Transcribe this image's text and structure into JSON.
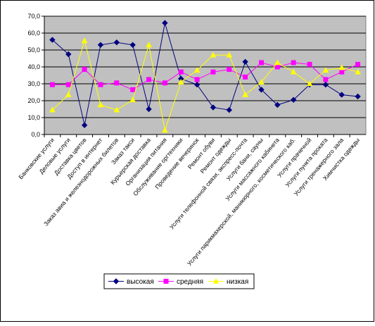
{
  "chart_data": {
    "type": "line",
    "categories": [
      "Банковские услуги",
      "Деловые услуги",
      "Доставка цветов",
      "Доступ в интернет",
      "Заказ авиа и железнодорожных билетов",
      "Заказ такси",
      "Курьерская доставка",
      "Организация питания",
      "Обслуживание оргтехники",
      "Проведение вечеринок",
      "Ремонт обуви",
      "Ремонт одежды",
      "Услуги телефонной связи, экспресс-почта",
      "Услуги бани, сауны",
      "Услуги массажного кабинета",
      "Услуги парикмахерской, маникюрного, косметического каб.",
      "Услуги прачечной",
      "Услуги пункта проката",
      "Услуги тренажерного зала",
      "Химчистка одежды"
    ],
    "series": [
      {
        "name": "высокая",
        "color": "#000080",
        "marker": "diamond",
        "values": [
          56,
          47.5,
          5.5,
          53,
          54.5,
          53,
          15,
          66,
          33,
          29.5,
          16,
          14.5,
          43,
          26.5,
          17.5,
          20.5,
          29.5,
          29.5,
          23.5,
          22.5
        ]
      },
      {
        "name": "средняя",
        "color": "#ff00ff",
        "marker": "square",
        "values": [
          29.5,
          29.5,
          38.5,
          29.5,
          30.5,
          26.5,
          32.5,
          30.5,
          37,
          32.5,
          37,
          38.5,
          34,
          42.5,
          40,
          42.5,
          41.5,
          32.5,
          37,
          41.5
        ]
      },
      {
        "name": "низкая",
        "color": "#ffff00",
        "marker": "triangle",
        "values": [
          14.5,
          23.5,
          55.5,
          17.5,
          14.5,
          20.5,
          53,
          2.5,
          31,
          38,
          47,
          47,
          23.5,
          31,
          42.5,
          37,
          30,
          38,
          39.5,
          37
        ]
      }
    ],
    "ylim": [
      0,
      70
    ],
    "yticks": [
      {
        "value": 0,
        "label": "0,0"
      },
      {
        "value": 10,
        "label": "10,0"
      },
      {
        "value": 20,
        "label": "20,0"
      },
      {
        "value": 30,
        "label": "30,0"
      },
      {
        "value": 40,
        "label": "40,0"
      },
      {
        "value": 50,
        "label": "50,0"
      },
      {
        "value": 60,
        "label": "60,0"
      },
      {
        "value": 70,
        "label": "70,0"
      }
    ],
    "grid": true,
    "plot_background": "#c0c0c0",
    "legend": "bottom"
  }
}
